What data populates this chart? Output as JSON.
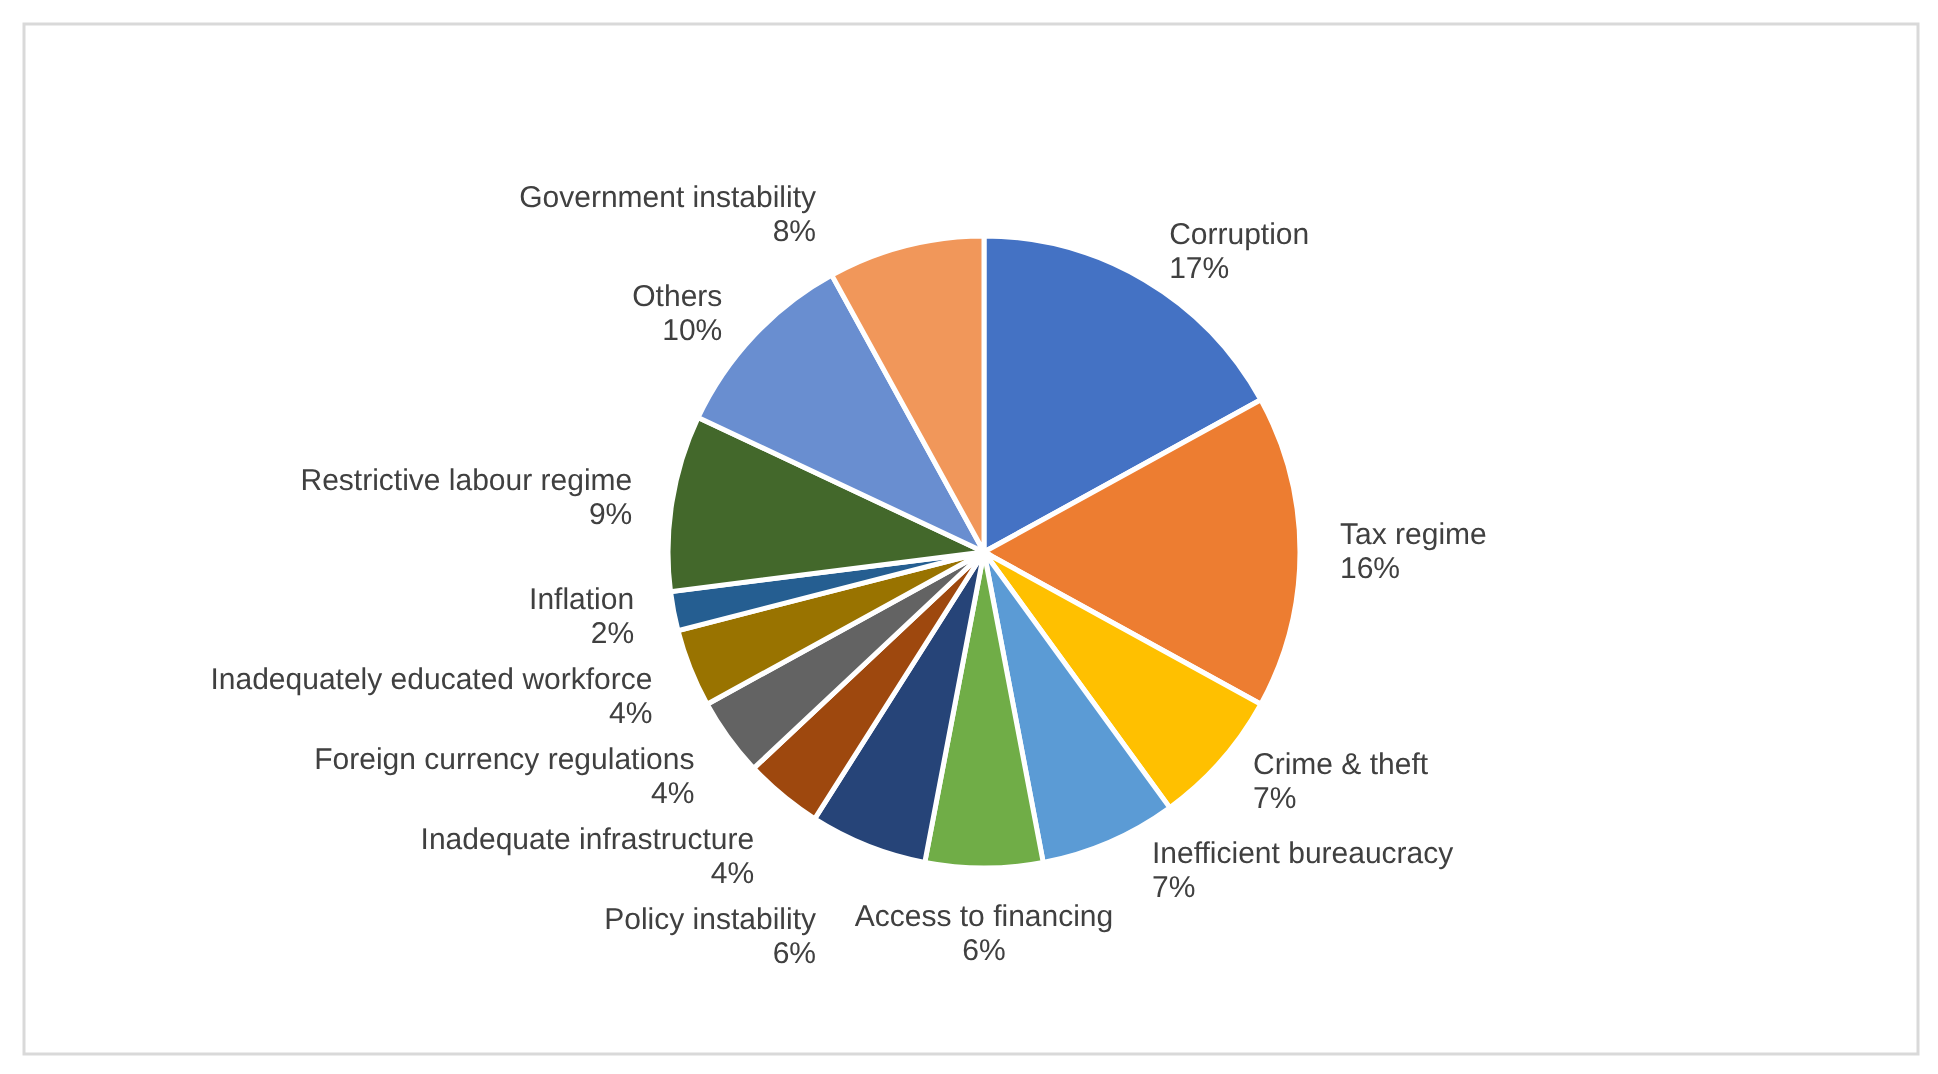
{
  "chart_data": {
    "type": "pie",
    "categories": [
      "Corruption",
      "Tax regime",
      "Crime & theft",
      "Inefficient bureaucracy",
      "Access to financing",
      "Policy instability",
      "Inadequate infrastructure",
      "Foreign currency regulations",
      "Inadequately educated workforce",
      "Inflation",
      "Restrictive labour regime",
      "Others",
      "Government instability"
    ],
    "values": [
      17,
      16,
      7,
      7,
      6,
      6,
      4,
      4,
      4,
      2,
      9,
      10,
      8
    ],
    "value_labels": [
      "17%",
      "16%",
      "7%",
      "7%",
      "6%",
      "6%",
      "4%",
      "4%",
      "4%",
      "2%",
      "9%",
      "10%",
      "8%"
    ],
    "colors": [
      "#4472c4",
      "#ed7d31",
      "#ffc000",
      "#5b9bd5",
      "#70ad47",
      "#264478",
      "#9e480e",
      "#636363",
      "#997300",
      "#255e91",
      "#43682b",
      "#698ed0",
      "#f1975a"
    ],
    "data_labels": true
  }
}
